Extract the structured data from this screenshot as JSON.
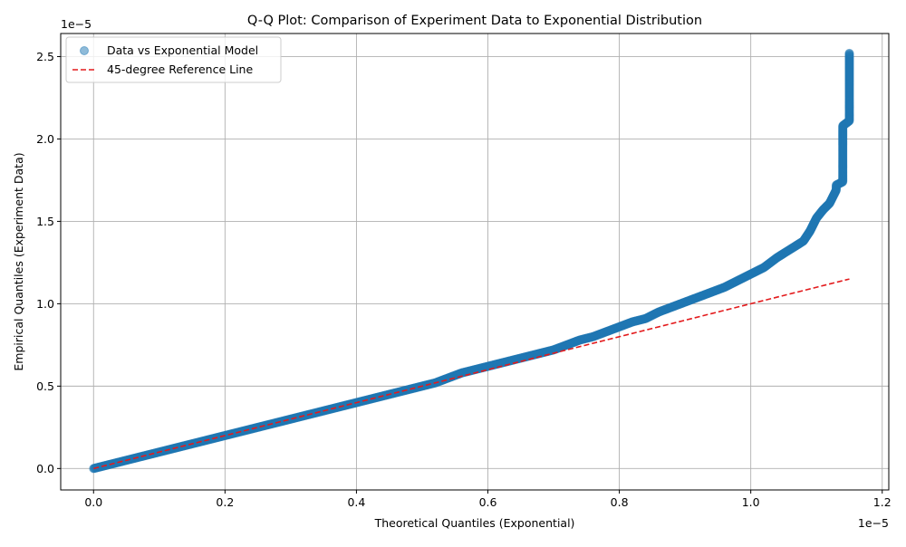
{
  "chart_data": {
    "type": "scatter",
    "title": "Q-Q Plot: Comparison of Experiment Data to Exponential Distribution",
    "xlabel": "Theoretical Quantiles (Exponential)",
    "ylabel": "Empirical Quantiles (Experiment Data)",
    "x_offset_label": "1e−5",
    "y_offset_label": "1e−5",
    "xlim": [
      -5e-07,
      1.21e-05
    ],
    "ylim": [
      -1.3e-06,
      2.64e-05
    ],
    "xticks": [
      0,
      2e-06,
      4e-06,
      6e-06,
      8e-06,
      1e-05,
      1.2e-05
    ],
    "xtick_labels": [
      "0.0",
      "0.2",
      "0.4",
      "0.6",
      "0.8",
      "1.0",
      "1.2"
    ],
    "yticks": [
      0,
      5e-06,
      1e-05,
      1.5e-05,
      2e-05,
      2.5e-05
    ],
    "ytick_labels": [
      "0.0",
      "0.5",
      "1.0",
      "1.5",
      "2.0",
      "2.5"
    ],
    "grid": true,
    "legend": {
      "position": "upper left"
    },
    "series": [
      {
        "name": "Data vs Exponential Model",
        "kind": "scatter",
        "color": "#1f77b4",
        "points": [
          [
            0.0,
            0.0
          ],
          [
            2e-07,
            2e-07
          ],
          [
            4e-07,
            4e-07
          ],
          [
            6e-07,
            6e-07
          ],
          [
            8e-07,
            8e-07
          ],
          [
            1e-06,
            1e-06
          ],
          [
            1.2e-06,
            1.2e-06
          ],
          [
            1.4e-06,
            1.4e-06
          ],
          [
            1.6e-06,
            1.6e-06
          ],
          [
            1.8e-06,
            1.8e-06
          ],
          [
            2e-06,
            2e-06
          ],
          [
            2.2e-06,
            2.2e-06
          ],
          [
            2.4e-06,
            2.4e-06
          ],
          [
            2.6e-06,
            2.6e-06
          ],
          [
            2.8e-06,
            2.8e-06
          ],
          [
            3e-06,
            3e-06
          ],
          [
            3.2e-06,
            3.2e-06
          ],
          [
            3.4e-06,
            3.4e-06
          ],
          [
            3.6e-06,
            3.6e-06
          ],
          [
            3.8e-06,
            3.8e-06
          ],
          [
            4e-06,
            4e-06
          ],
          [
            4.2e-06,
            4.2e-06
          ],
          [
            4.4e-06,
            4.4e-06
          ],
          [
            4.6e-06,
            4.6e-06
          ],
          [
            4.8e-06,
            4.8e-06
          ],
          [
            5e-06,
            5e-06
          ],
          [
            5.2e-06,
            5.2e-06
          ],
          [
            5.4e-06,
            5.5e-06
          ],
          [
            5.6e-06,
            5.8e-06
          ],
          [
            5.8e-06,
            6e-06
          ],
          [
            6e-06,
            6.2e-06
          ],
          [
            6.2e-06,
            6.4e-06
          ],
          [
            6.4e-06,
            6.6e-06
          ],
          [
            6.6e-06,
            6.8e-06
          ],
          [
            6.8e-06,
            7e-06
          ],
          [
            7e-06,
            7.2e-06
          ],
          [
            7.2e-06,
            7.5e-06
          ],
          [
            7.4e-06,
            7.8e-06
          ],
          [
            7.6e-06,
            8e-06
          ],
          [
            7.8e-06,
            8.3e-06
          ],
          [
            8e-06,
            8.6e-06
          ],
          [
            8.2e-06,
            8.9e-06
          ],
          [
            8.4e-06,
            9.1e-06
          ],
          [
            8.6e-06,
            9.5e-06
          ],
          [
            8.8e-06,
            9.8e-06
          ],
          [
            9e-06,
            1.01e-05
          ],
          [
            9.2e-06,
            1.04e-05
          ],
          [
            9.4e-06,
            1.07e-05
          ],
          [
            9.6e-06,
            1.1e-05
          ],
          [
            9.8e-06,
            1.14e-05
          ],
          [
            1e-05,
            1.18e-05
          ],
          [
            1.02e-05,
            1.22e-05
          ],
          [
            1.04e-05,
            1.28e-05
          ],
          [
            1.06e-05,
            1.33e-05
          ],
          [
            1.08e-05,
            1.38e-05
          ],
          [
            1.09e-05,
            1.44e-05
          ],
          [
            1.1e-05,
            1.52e-05
          ],
          [
            1.11e-05,
            1.57e-05
          ],
          [
            1.12e-05,
            1.61e-05
          ],
          [
            1.13e-05,
            1.69e-05
          ],
          [
            1.13e-05,
            1.72e-05
          ],
          [
            1.14e-05,
            1.74e-05
          ],
          [
            1.14e-05,
            1.82e-05
          ],
          [
            1.14e-05,
            1.84e-05
          ],
          [
            1.14e-05,
            2.08e-05
          ],
          [
            1.15e-05,
            2.11e-05
          ],
          [
            1.15e-05,
            2.18e-05
          ],
          [
            1.15e-05,
            2.2e-05
          ],
          [
            1.15e-05,
            2.21e-05
          ],
          [
            1.15e-05,
            2.52e-05
          ]
        ]
      },
      {
        "name": "45-degree Reference Line",
        "kind": "line",
        "color": "#e31a1c",
        "points": [
          [
            0.0,
            0.0
          ],
          [
            1.15e-05,
            1.15e-05
          ]
        ]
      }
    ]
  }
}
